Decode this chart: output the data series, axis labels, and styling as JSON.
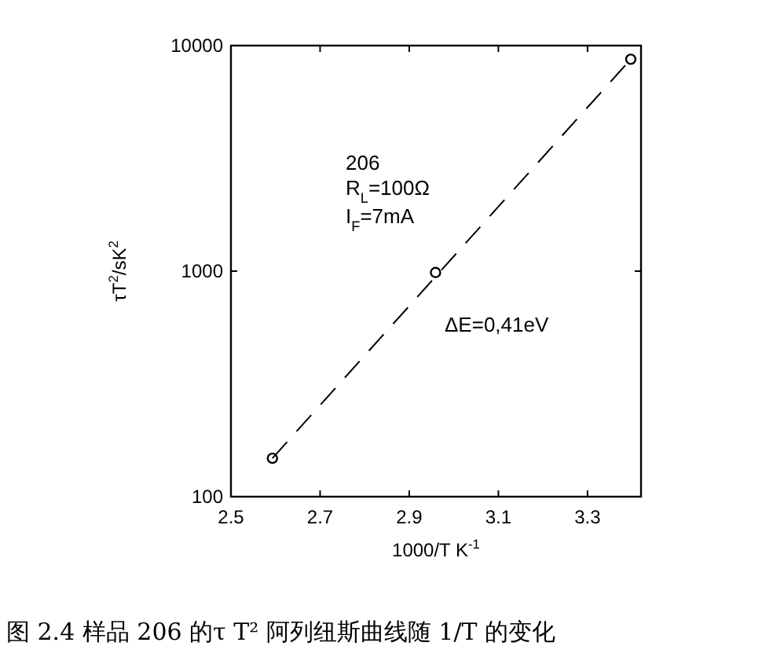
{
  "chart_data": {
    "type": "scatter",
    "title": "图 2.4 样品 206 的τ T² 阿列纽斯曲线随 1/T 的变化",
    "xlabel": "1000/T K$^{-1}$",
    "ylabel": "τT$^{2}$/sK$^{2}$",
    "annotations": [
      "206",
      "R$_{L}$=100Ω",
      "I$_{F}$=7mA",
      "ΔE=0,41eV"
    ],
    "series": [
      {
        "type": "line",
        "color": "#000000",
        "x": [
          2.593,
          3.397
        ],
        "values": [
          148,
          8700
        ],
        "line_style": "dashed"
      },
      {
        "color": "#000000",
        "x": [
          2.593,
          2.959,
          3.397
        ],
        "values": [
          148,
          986,
          8700
        ],
        "marker": "circle"
      }
    ],
    "xlim": [
      2.5,
      3.42
    ],
    "xticks": [
      2.5,
      2.7,
      2.9,
      3.1,
      3.3
    ],
    "ylim": [
      100,
      10000
    ],
    "yticks": [
      100,
      1000,
      10000
    ],
    "log": "y",
    "grid": false
  }
}
